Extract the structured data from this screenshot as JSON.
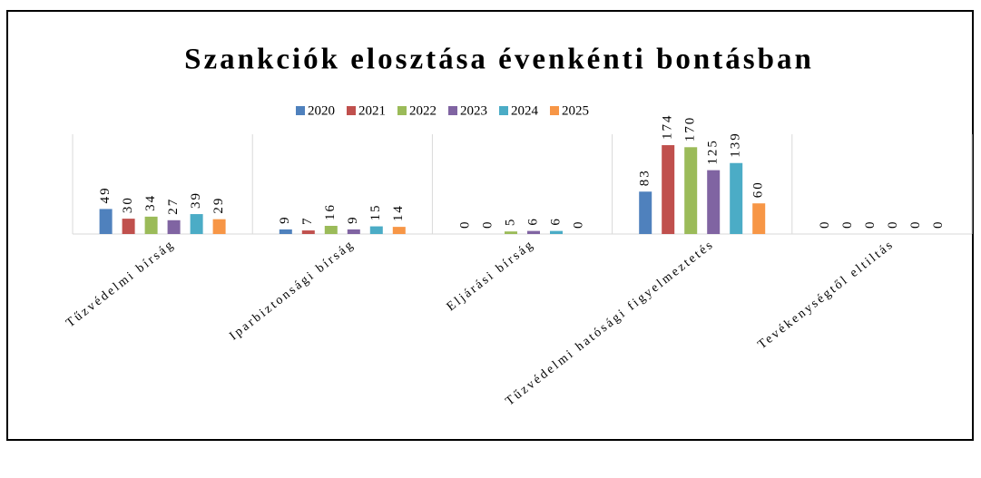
{
  "chart_data": {
    "type": "bar",
    "title": "Szankciók elosztása évenkénti bontásban",
    "categories": [
      "Tűzvédelmi bírság",
      "Iparbiztonsági bírság",
      "Eljárási bírság",
      "Tűzvédelmi hatósági figyelmeztetés",
      "Tevékenységtől eltiltás"
    ],
    "series": [
      {
        "name": "2020",
        "color": "#4f81bd",
        "values": [
          49,
          9,
          0,
          83,
          0
        ]
      },
      {
        "name": "2021",
        "color": "#c0504d",
        "values": [
          30,
          7,
          0,
          174,
          0
        ]
      },
      {
        "name": "2022",
        "color": "#9bbb59",
        "values": [
          34,
          16,
          5,
          170,
          0
        ]
      },
      {
        "name": "2023",
        "color": "#8064a2",
        "values": [
          27,
          9,
          6,
          125,
          0
        ]
      },
      {
        "name": "2024",
        "color": "#4bacc6",
        "values": [
          39,
          15,
          6,
          139,
          0
        ]
      },
      {
        "name": "2025",
        "color": "#f79646",
        "values": [
          29,
          14,
          0,
          60,
          0
        ]
      }
    ]
  }
}
